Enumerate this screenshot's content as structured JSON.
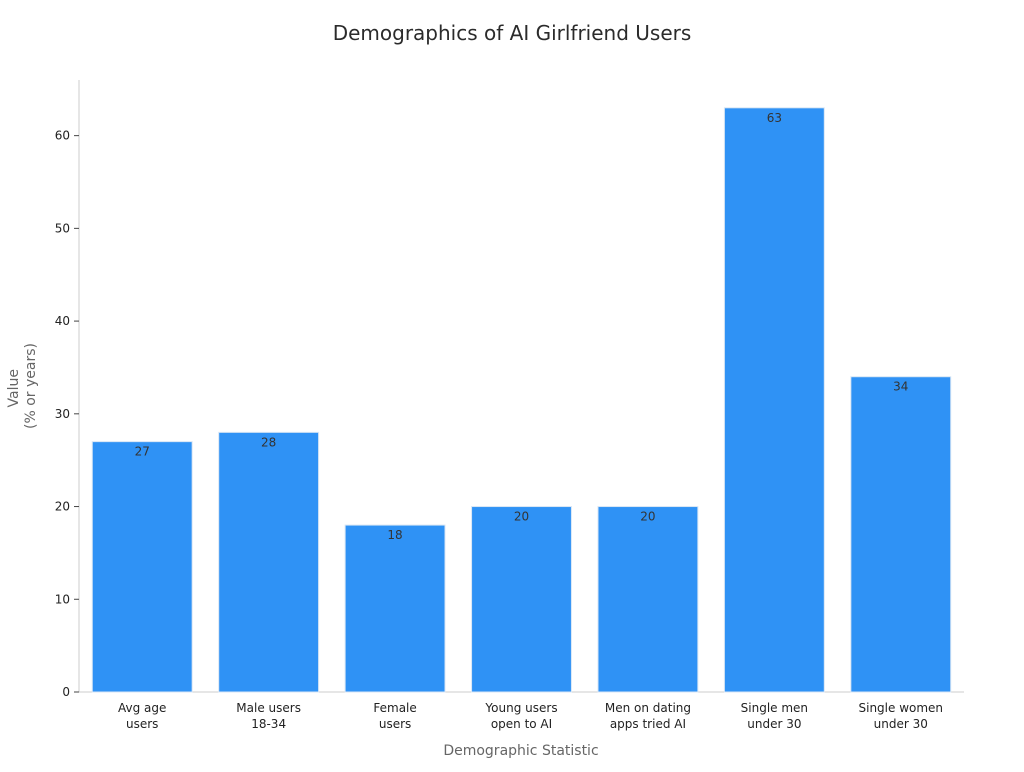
{
  "chart_data": {
    "type": "bar",
    "title": "Demographics of AI Girlfriend Users",
    "xlabel": "Demographic Statistic",
    "ylabel_lines": [
      "Value",
      "(% or years)"
    ],
    "categories": [
      [
        "Avg age",
        "users"
      ],
      [
        "Male users",
        "18-34"
      ],
      [
        "Female",
        "users"
      ],
      [
        "Young users",
        "open to AI"
      ],
      [
        "Men on dating",
        "apps tried AI"
      ],
      [
        "Single men",
        "under 30"
      ],
      [
        "Single women",
        "under 30"
      ]
    ],
    "values": [
      27,
      28,
      18,
      20,
      20,
      63,
      34
    ],
    "ylim": [
      0,
      66
    ],
    "yticks": [
      0,
      10,
      20,
      30,
      40,
      50,
      60
    ],
    "grid": false,
    "colors": {
      "bar": "#2f92f5",
      "bar_edge": "#d8e6f5",
      "axis": "#cccccc",
      "tick": "#444444"
    }
  }
}
